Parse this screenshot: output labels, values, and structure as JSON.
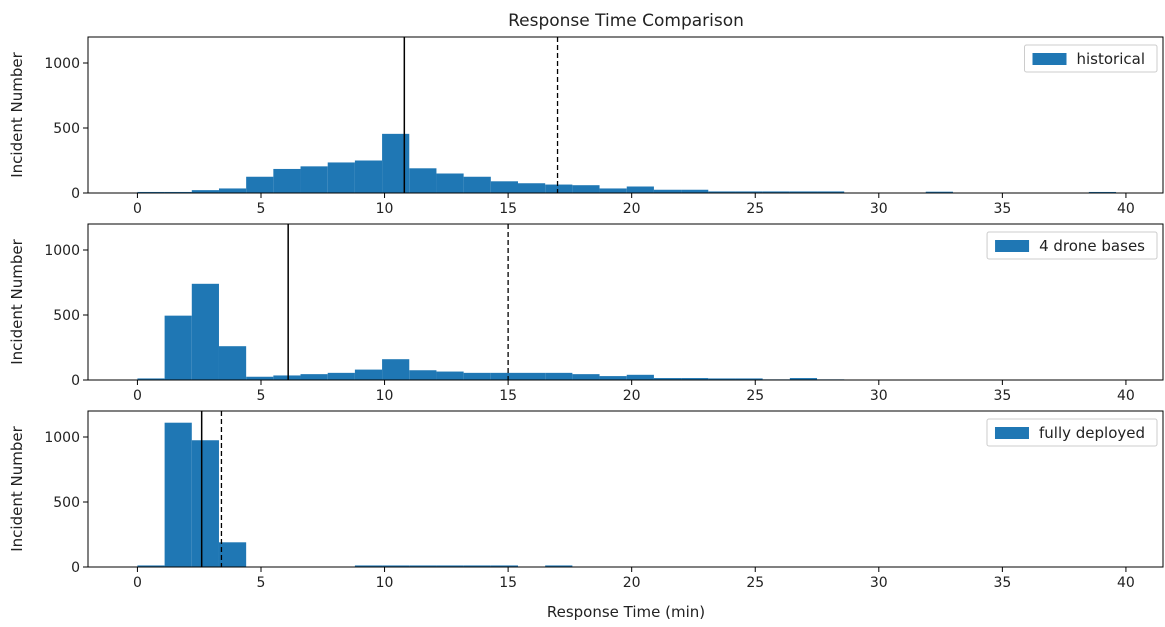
{
  "chart_data": {
    "type": "bar",
    "title": "Response Time Comparison",
    "xlabel": "Response Time (min)",
    "ylabel": "Incident Number",
    "xlim": [
      -2,
      41.5
    ],
    "ylim": [
      0,
      1200
    ],
    "xticks": [
      0,
      5,
      10,
      15,
      20,
      25,
      30,
      35,
      40
    ],
    "yticks": [
      0,
      500,
      1000
    ],
    "bar_color": "#1f77b4",
    "legend_position": "upper right",
    "panels": [
      {
        "name": "historical",
        "legend": "historical",
        "bin_start": 0,
        "bin_width": 1.1,
        "counts": [
          8,
          8,
          22,
          35,
          125,
          185,
          205,
          235,
          250,
          455,
          190,
          150,
          125,
          90,
          75,
          65,
          60,
          35,
          50,
          25,
          25,
          12,
          12,
          12,
          12,
          12,
          0,
          0,
          0,
          10,
          0,
          0,
          0,
          0,
          0,
          8,
          0,
          0
        ],
        "median": 10.8,
        "percentile_90": 17
      },
      {
        "name": "4 drone bases",
        "legend": "4 drone bases",
        "bin_start": 0,
        "bin_width": 1.1,
        "counts": [
          12,
          495,
          740,
          260,
          25,
          35,
          45,
          55,
          80,
          160,
          75,
          65,
          55,
          55,
          55,
          55,
          45,
          30,
          40,
          15,
          15,
          12,
          12,
          5,
          15,
          5,
          0,
          0,
          0,
          0,
          0,
          0,
          0,
          0,
          0,
          0
        ],
        "median": 6.1,
        "percentile_90": 15
      },
      {
        "name": "fully deployed",
        "legend": "fully deployed",
        "bin_start": 0,
        "bin_width": 1.1,
        "counts": [
          12,
          1110,
          975,
          190,
          0,
          0,
          0,
          0,
          12,
          12,
          12,
          12,
          12,
          12,
          0,
          12,
          0,
          0,
          0,
          0,
          0,
          0,
          0,
          0,
          0,
          0,
          0,
          0,
          0,
          0,
          0,
          0,
          0,
          0,
          0,
          0
        ],
        "median": 2.6,
        "percentile_90": 3.4
      }
    ]
  }
}
